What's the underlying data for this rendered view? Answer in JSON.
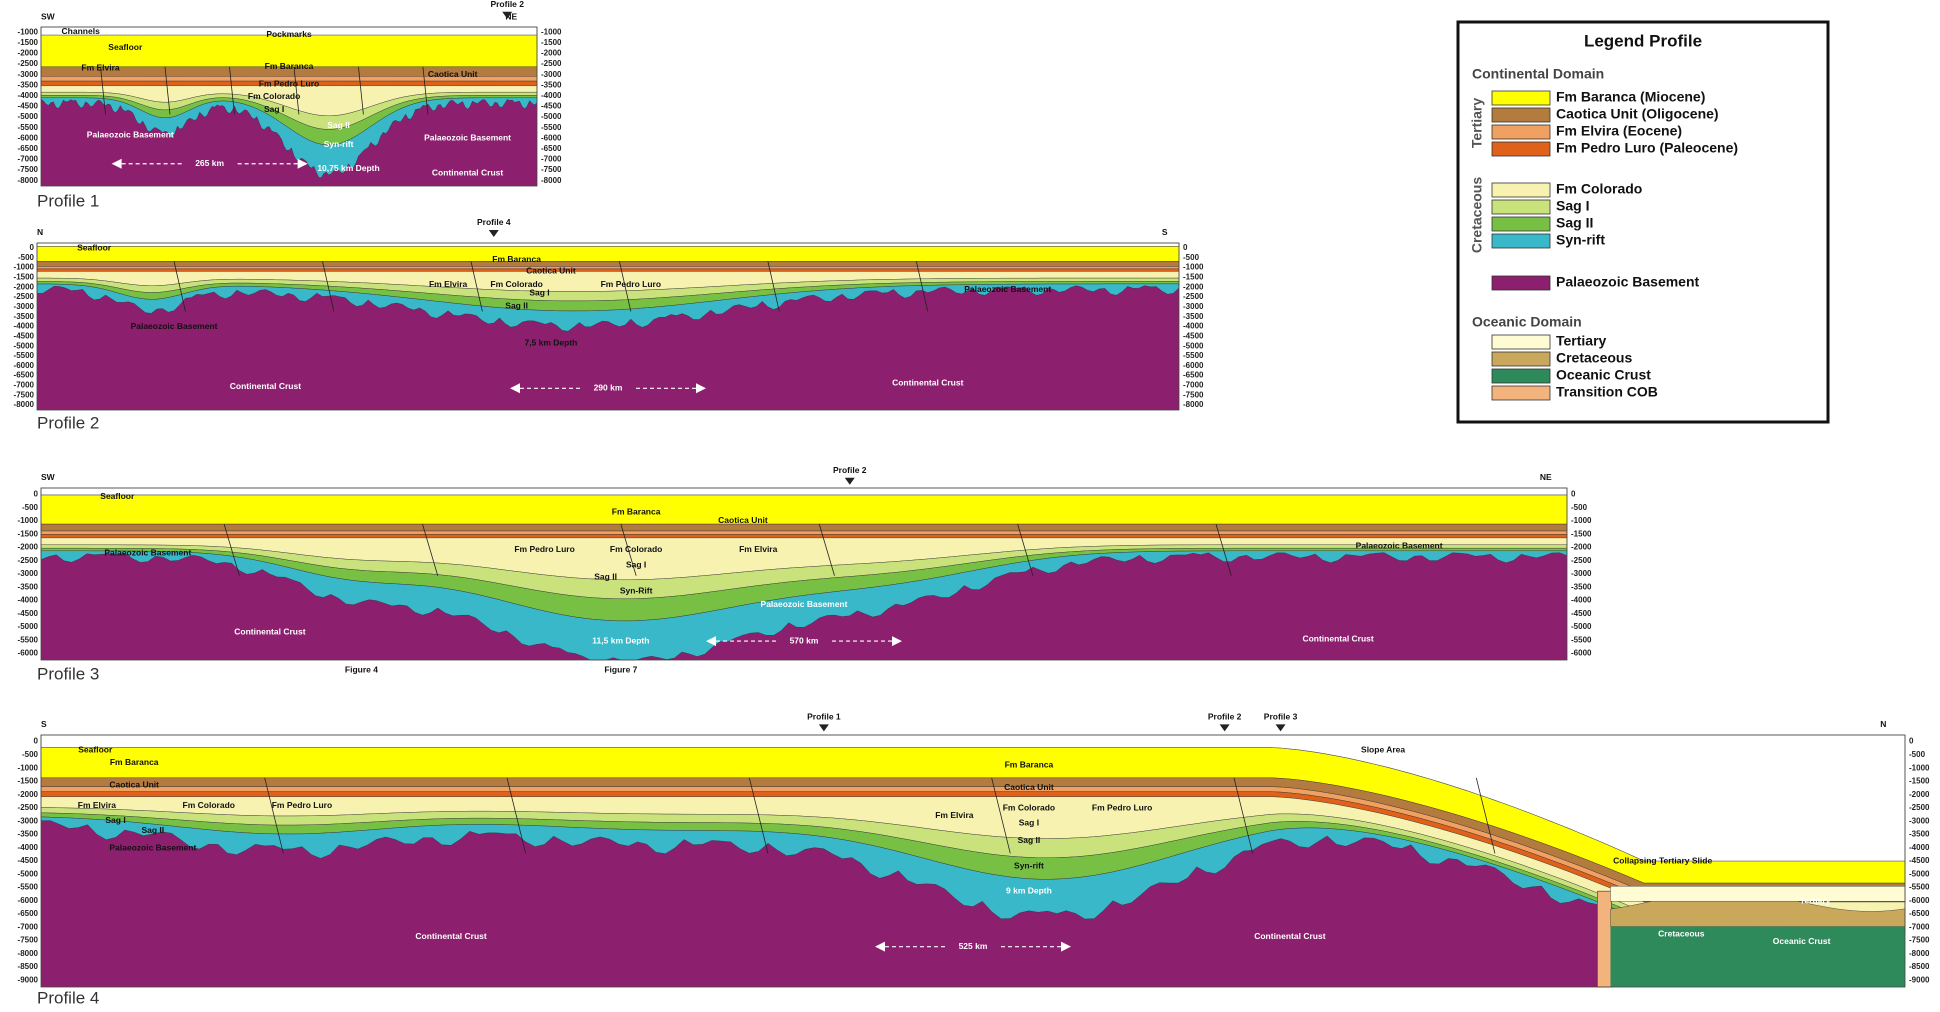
{
  "profiles": [
    {
      "name": "Profile 1",
      "ticks": [
        "-1000",
        "-1500",
        "-2000",
        "-2500",
        "-3000",
        "-3500",
        "-4000",
        "-4500",
        "-5000",
        "-5500",
        "-6000",
        "-6500",
        "-7000",
        "-7500",
        "-8000"
      ],
      "labels": [
        "SW",
        "NE",
        "Profile 2",
        "Channels",
        "Pockmarks",
        "Seafloor",
        "Fm Baranca",
        "Fm Elvira",
        "Caotica Unit",
        "Fm Pedro Luro",
        "Fm Colorado",
        "Sag I",
        "Sag II",
        "Syn-rift",
        "Palaeozoic Basement",
        "Palaeozoic Basement",
        "265 km",
        "10,75 km Depth",
        "Continental Crust"
      ]
    },
    {
      "name": "Profile 2",
      "ticks": [
        "0",
        "-500",
        "-1000",
        "-1500",
        "-2000",
        "-2500",
        "-3000",
        "-3500",
        "-4000",
        "-4500",
        "-5000",
        "-5500",
        "-6000",
        "-6500",
        "-7000",
        "-7500",
        "-8000"
      ],
      "labels": [
        "N",
        "S",
        "Profile 4",
        "Seafloor",
        "Fm Baranca",
        "Caotica Unit",
        "Fm Elvira",
        "Fm Colorado",
        "Fm Pedro Luro",
        "Sag I",
        "Sag II",
        "Palaeozoic Basement",
        "Palaeozoic Basement",
        "7,5 km Depth",
        "Continental Crust",
        "Continental Crust",
        "290 km"
      ]
    },
    {
      "name": "Profile 3",
      "ticks": [
        "0",
        "-500",
        "-1000",
        "-1500",
        "-2000",
        "-2500",
        "-3000",
        "-3500",
        "-4000",
        "-4500",
        "-5000",
        "-5500",
        "-6000"
      ],
      "labels": [
        "SW",
        "NE",
        "Profile 2",
        "Seafloor",
        "Fm Baranca",
        "Caotica Unit",
        "Fm Pedro Luro",
        "Fm Colorado",
        "Fm Elvira",
        "Sag I",
        "Sag II",
        "Syn-Rift",
        "Palaeozoic Basement",
        "Palaeozoic Basement",
        "Palaeozoic Basement",
        "Continental Crust",
        "Continental Crust",
        "11,5 km Depth",
        "570 km",
        "Figure 4",
        "Figure 7"
      ]
    },
    {
      "name": "Profile 4",
      "ticks": [
        "0",
        "-500",
        "-1000",
        "-1500",
        "-2000",
        "-2500",
        "-3000",
        "-3500",
        "-4000",
        "-4500",
        "-5000",
        "-5500",
        "-6000",
        "-6500",
        "-7000",
        "-7500",
        "-8000",
        "-8500",
        "-9000"
      ],
      "labels": [
        "S",
        "N",
        "Profile 1",
        "Profile 2",
        "Profile 3",
        "Seafloor",
        "Fm Baranca",
        "Fm Baranca",
        "Caotica Unit",
        "Caotica Unit",
        "Fm Elvira",
        "Fm Elvira",
        "Fm Colorado",
        "Fm Colorado",
        "Fm Pedro Luro",
        "Fm Pedro Luro",
        "Sag I",
        "Sag I",
        "Sag II",
        "Sag II",
        "Syn-rift",
        "Palaeozoic Basement",
        "9 km Depth",
        "Continental Crust",
        "Continental Crust",
        "Slope Area",
        "Collapsing Tertiary Slide",
        "Tertiary",
        "Cretaceous",
        "Oceanic Crust",
        "525 km"
      ]
    }
  ],
  "legend": {
    "title": "Legend Profile",
    "continental": {
      "title": "Continental Domain",
      "tertiary": {
        "label": "Tertiary",
        "items": [
          {
            "label": "Fm Baranca (Miocene)",
            "color": "#ffff00"
          },
          {
            "label": "Caotica Unit (Oligocene)",
            "color": "#b37b3e"
          },
          {
            "label": "Fm Elvira (Eocene)",
            "color": "#f0a060"
          },
          {
            "label": "Fm Pedro Luro (Paleocene)",
            "color": "#e0621a"
          }
        ]
      },
      "cretaceous": {
        "label": "Cretaceous",
        "items": [
          {
            "label": "Fm Colorado",
            "color": "#f7f2b0"
          },
          {
            "label": "Sag I",
            "color": "#c9e27c"
          },
          {
            "label": "Sag II",
            "color": "#78c043"
          },
          {
            "label": "Syn-rift",
            "color": "#38b8c8"
          }
        ]
      },
      "basement": {
        "label": "Palaeozoic Basement",
        "color": "#8c1f6e"
      }
    },
    "oceanic": {
      "title": "Oceanic Domain",
      "items": [
        {
          "label": "Tertiary",
          "color": "#fffbd2"
        },
        {
          "label": "Cretaceous",
          "color": "#c9a85c"
        },
        {
          "label": "Oceanic Crust",
          "color": "#2e8a5a"
        },
        {
          "label": "Transition COB",
          "color": "#f2b47c"
        }
      ]
    }
  }
}
